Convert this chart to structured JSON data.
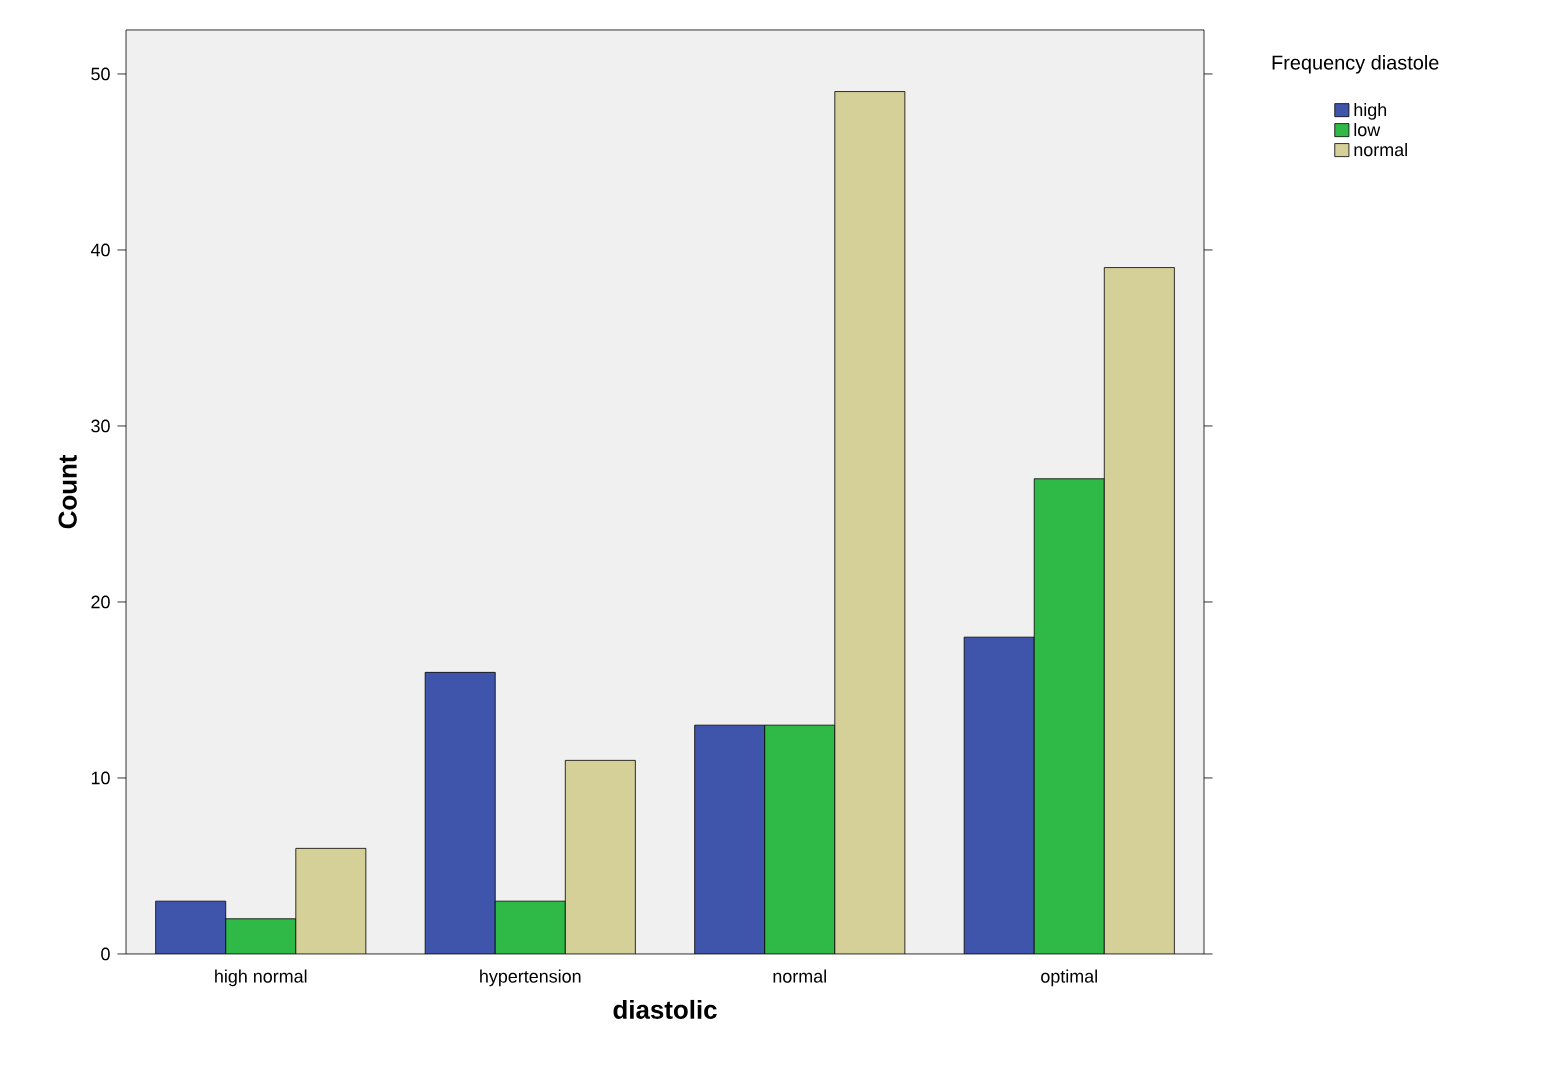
{
  "chart_data": {
    "type": "bar",
    "xlabel": "diastolic",
    "ylabel": "Count",
    "legend_title": "Frequency diastole",
    "categories": [
      "high normal",
      "hypertension",
      "normal",
      "optimal"
    ],
    "series": [
      {
        "name": "high",
        "color": "#3e55ab",
        "values": [
          3,
          16,
          13,
          18
        ]
      },
      {
        "name": "low",
        "color": "#2fba48",
        "values": [
          2,
          3,
          13,
          27
        ]
      },
      {
        "name": "normal",
        "color": "#d5cf98",
        "values": [
          6,
          11,
          49,
          39
        ]
      }
    ],
    "ylim": [
      0,
      52.5
    ],
    "yticks": [
      0,
      10,
      20,
      30,
      40,
      50
    ],
    "grid": false,
    "legend": "top right"
  }
}
